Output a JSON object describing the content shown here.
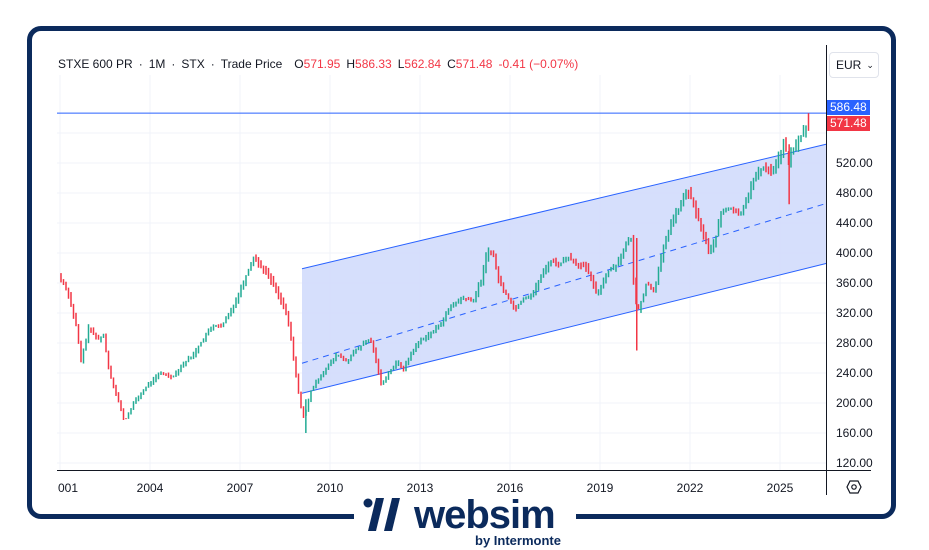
{
  "header": {
    "symbol": "STXE 600 PR",
    "sep": "·",
    "interval": "1M",
    "exchange": "STX",
    "price_type": "Trade Price",
    "open_label": "O",
    "open": "571.95",
    "high_label": "H",
    "high": "586.33",
    "low_label": "L",
    "low": "562.84",
    "close_label": "C",
    "close": "571.48",
    "change": "-0.41 (−0.07%)"
  },
  "currency": {
    "selected": "EUR"
  },
  "price_tags": {
    "line_value": "586.48",
    "last_value": "571.48"
  },
  "colors": {
    "up": "#22ab94",
    "down": "#f23645",
    "channel_line": "#2962ff",
    "channel_fill": "#d1dcfc",
    "tag_blue": "#2962ff",
    "tag_red": "#f23645",
    "frame": "#0b2a5c",
    "grid": "#f0f3fa"
  },
  "y_axis": {
    "ticks": [
      "520.00",
      "480.00",
      "440.00",
      "400.00",
      "360.00",
      "320.00",
      "280.00",
      "240.00",
      "200.00",
      "160.00",
      "120.00"
    ]
  },
  "x_axis": {
    "ticks": [
      "001",
      "2004",
      "2007",
      "2010",
      "2013",
      "2016",
      "2019",
      "2022",
      "2025"
    ]
  },
  "branding": {
    "name": "websim",
    "sub": "by Intermonte"
  },
  "chart_data": {
    "type": "bar",
    "title": "STXE 600 PR · 1M · STX · Trade Price",
    "xlabel": "",
    "ylabel": "EUR",
    "ylim": [
      110,
      600
    ],
    "x_range": [
      "2001-01",
      "2026-01"
    ],
    "x_ticks": [
      "2001",
      "2004",
      "2007",
      "2010",
      "2013",
      "2016",
      "2019",
      "2022",
      "2025"
    ],
    "y_ticks": [
      120,
      160,
      200,
      240,
      280,
      320,
      360,
      400,
      440,
      480,
      520
    ],
    "last_bar": {
      "open": 571.95,
      "high": 586.33,
      "low": 562.84,
      "close": 571.48,
      "change": -0.41,
      "change_pct": -0.07
    },
    "horizontal_line": 586.48,
    "regression_channel": {
      "start": "2009-02",
      "end": "2025-12",
      "upper": [
        379,
        545
      ],
      "middle": [
        253,
        466
      ],
      "lower": [
        213,
        386
      ]
    },
    "price_anchors": [
      [
        2001.0,
        370
      ],
      [
        2001.3,
        350
      ],
      [
        2001.6,
        300
      ],
      [
        2001.75,
        255
      ],
      [
        2002.0,
        300
      ],
      [
        2002.3,
        285
      ],
      [
        2002.5,
        290
      ],
      [
        2002.7,
        240
      ],
      [
        2002.9,
        215
      ],
      [
        2003.2,
        175
      ],
      [
        2003.5,
        200
      ],
      [
        2003.8,
        215
      ],
      [
        2004.0,
        225
      ],
      [
        2004.4,
        240
      ],
      [
        2004.8,
        235
      ],
      [
        2005.1,
        250
      ],
      [
        2005.5,
        265
      ],
      [
        2005.9,
        290
      ],
      [
        2006.2,
        305
      ],
      [
        2006.4,
        300
      ],
      [
        2006.7,
        320
      ],
      [
        2007.0,
        345
      ],
      [
        2007.3,
        375
      ],
      [
        2007.5,
        395
      ],
      [
        2007.8,
        380
      ],
      [
        2008.0,
        370
      ],
      [
        2008.2,
        355
      ],
      [
        2008.5,
        330
      ],
      [
        2008.7,
        300
      ],
      [
        2008.9,
        240
      ],
      [
        2009.1,
        190
      ],
      [
        2009.2,
        180
      ],
      [
        2009.4,
        215
      ],
      [
        2009.7,
        235
      ],
      [
        2010.0,
        250
      ],
      [
        2010.3,
        265
      ],
      [
        2010.6,
        255
      ],
      [
        2010.9,
        270
      ],
      [
        2011.2,
        280
      ],
      [
        2011.4,
        285
      ],
      [
        2011.6,
        255
      ],
      [
        2011.75,
        225
      ],
      [
        2012.0,
        240
      ],
      [
        2012.3,
        255
      ],
      [
        2012.5,
        245
      ],
      [
        2012.8,
        270
      ],
      [
        2013.1,
        285
      ],
      [
        2013.5,
        295
      ],
      [
        2013.8,
        310
      ],
      [
        2014.1,
        330
      ],
      [
        2014.5,
        340
      ],
      [
        2014.8,
        335
      ],
      [
        2015.1,
        365
      ],
      [
        2015.3,
        405
      ],
      [
        2015.5,
        395
      ],
      [
        2015.7,
        360
      ],
      [
        2016.0,
        340
      ],
      [
        2016.2,
        325
      ],
      [
        2016.5,
        340
      ],
      [
        2016.8,
        345
      ],
      [
        2017.1,
        370
      ],
      [
        2017.4,
        390
      ],
      [
        2017.7,
        385
      ],
      [
        2018.0,
        395
      ],
      [
        2018.3,
        385
      ],
      [
        2018.6,
        380
      ],
      [
        2018.95,
        345
      ],
      [
        2019.3,
        375
      ],
      [
        2019.6,
        385
      ],
      [
        2019.9,
        410
      ],
      [
        2020.1,
        420
      ],
      [
        2020.2,
        335
      ],
      [
        2020.35,
        325
      ],
      [
        2020.6,
        360
      ],
      [
        2020.85,
        350
      ],
      [
        2021.1,
        395
      ],
      [
        2021.4,
        440
      ],
      [
        2021.7,
        460
      ],
      [
        2021.95,
        485
      ],
      [
        2022.2,
        460
      ],
      [
        2022.45,
        430
      ],
      [
        2022.7,
        400
      ],
      [
        2022.9,
        420
      ],
      [
        2023.1,
        455
      ],
      [
        2023.4,
        460
      ],
      [
        2023.7,
        450
      ],
      [
        2023.9,
        470
      ],
      [
        2024.2,
        500
      ],
      [
        2024.5,
        515
      ],
      [
        2024.8,
        510
      ],
      [
        2025.1,
        535
      ],
      [
        2025.2,
        550
      ],
      [
        2025.3,
        520
      ],
      [
        2025.45,
        535
      ],
      [
        2025.6,
        545
      ],
      [
        2025.8,
        560
      ],
      [
        2025.95,
        571.5
      ]
    ]
  }
}
